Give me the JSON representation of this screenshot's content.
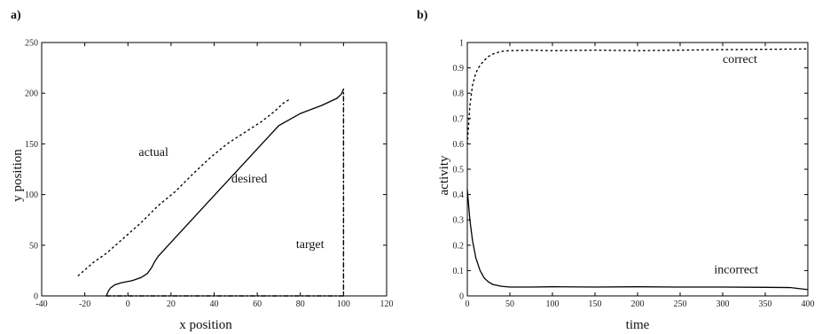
{
  "chart_data": [
    {
      "type": "line",
      "panel_label": "a)",
      "xlabel": "x position",
      "ylabel": "y position",
      "xlim": [
        -40,
        120
      ],
      "ylim": [
        0,
        250
      ],
      "xticks": [
        "-40",
        "-20",
        "0",
        "20",
        "40",
        "60",
        "80",
        "100",
        "120"
      ],
      "yticks": [
        "0",
        "50",
        "100",
        "150",
        "200",
        "250"
      ],
      "grid": false,
      "annotations": [
        {
          "text": "actual",
          "x": 5,
          "y": 138
        },
        {
          "text": "desired",
          "x": 48,
          "y": 112
        },
        {
          "text": "target",
          "x": 78,
          "y": 47
        }
      ],
      "series": [
        {
          "style": "solid",
          "x": [
            -10,
            -9,
            -8,
            -6,
            -3,
            2,
            6,
            9,
            11,
            12.5,
            14,
            20,
            30,
            40,
            50,
            60,
            70,
            80,
            90,
            97,
            99,
            100
          ],
          "y": [
            0,
            5,
            8,
            11,
            13,
            15,
            18,
            22,
            28,
            34,
            39,
            53,
            76,
            99,
            122,
            145,
            168,
            180,
            188,
            195,
            199,
            204
          ]
        },
        {
          "style": "dotted",
          "x": [
            -23,
            -16,
            -10,
            -2,
            6,
            14,
            22,
            30,
            38,
            46,
            54,
            62,
            68,
            72,
            75
          ],
          "y": [
            20,
            33,
            42,
            57,
            72,
            89,
            103,
            120,
            136,
            150,
            161,
            172,
            182,
            190,
            194
          ]
        },
        {
          "style": "dash-dot",
          "x": [
            -10,
            30,
            70,
            100,
            100
          ],
          "y": [
            0,
            0,
            0,
            0,
            204
          ]
        }
      ]
    },
    {
      "type": "line",
      "panel_label": "b)",
      "xlabel": "time",
      "ylabel": "activity",
      "xlim": [
        0,
        400
      ],
      "ylim": [
        0,
        1
      ],
      "xticks": [
        "0",
        "50",
        "100",
        "150",
        "200",
        "250",
        "300",
        "350",
        "400"
      ],
      "yticks": [
        "0",
        "0.1",
        "0.2",
        "0.3",
        "0.4",
        "0.5",
        "0.6",
        "0.7",
        "0.8",
        "0.9",
        "1"
      ],
      "grid": false,
      "annotations": [
        {
          "text": "correct",
          "x": 300,
          "y": 0.92
        },
        {
          "text": "incorrect",
          "x": 290,
          "y": 0.09
        }
      ],
      "series": [
        {
          "name": "correct",
          "style": "dotted",
          "x": [
            0,
            3,
            6,
            10,
            15,
            20,
            25,
            30,
            40,
            50,
            75,
            100,
            150,
            200,
            250,
            300,
            350,
            400
          ],
          "y": [
            0.6,
            0.75,
            0.83,
            0.88,
            0.91,
            0.93,
            0.945,
            0.955,
            0.965,
            0.968,
            0.97,
            0.968,
            0.97,
            0.968,
            0.97,
            0.972,
            0.973,
            0.975
          ]
        },
        {
          "name": "incorrect",
          "style": "solid",
          "x": [
            0,
            3,
            6,
            10,
            15,
            20,
            25,
            30,
            40,
            50,
            75,
            100,
            150,
            200,
            250,
            300,
            350,
            380,
            400
          ],
          "y": [
            0.42,
            0.3,
            0.22,
            0.15,
            0.1,
            0.07,
            0.055,
            0.045,
            0.038,
            0.035,
            0.035,
            0.036,
            0.035,
            0.036,
            0.035,
            0.035,
            0.034,
            0.033,
            0.025
          ]
        }
      ]
    }
  ]
}
